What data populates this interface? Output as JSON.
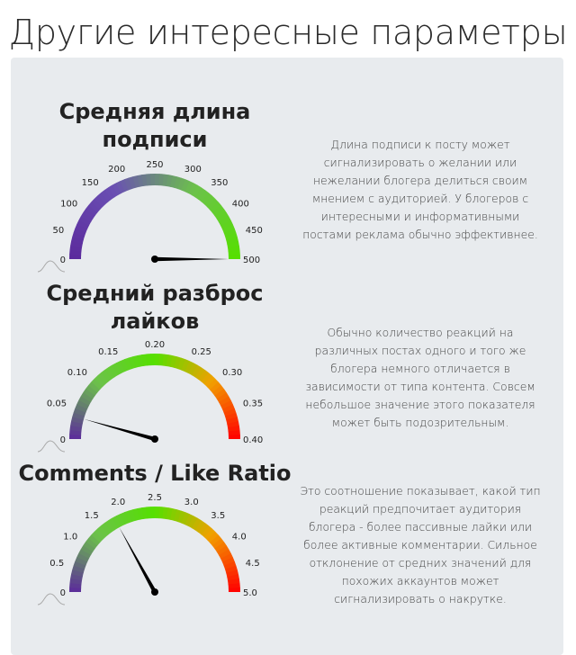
{
  "page": {
    "title": "Другие интересные параметры"
  },
  "gauges": [
    {
      "title_line1": "Средняя длина",
      "title_line2": "подписи",
      "description": "Длина подписи к посту может сигнализировать о желании или нежелании блогера делиться своим мнением с аудиторией. У блогеров с интересными и информативными постами реклама обычно эффективнее.",
      "tick_labels": [
        "0",
        "50",
        "100",
        "150",
        "200",
        "250",
        "300",
        "350",
        "400",
        "450",
        "500"
      ],
      "min": 0,
      "max": 500,
      "value": 500,
      "palette": "purple-green",
      "colors": [
        "#5b2a9c",
        "#6a4fb3",
        "#6cc24a",
        "#55e000"
      ]
    },
    {
      "title_line1": "Средний разброс",
      "title_line2": "лайков",
      "description": "Обычно количество реакций на различных постах одного и того же блогера немного отличается в зависимости от типа контента. Совсем небольшое значение этого показателя может быть подозрительным.",
      "tick_labels": [
        "0",
        "0.05",
        "0.10",
        "0.15",
        "0.20",
        "0.25",
        "0.30",
        "0.35",
        "0.40"
      ],
      "min": 0,
      "max": 0.4,
      "value": 0.035,
      "palette": "purple-green-red",
      "colors": [
        "#5b2a9c",
        "#6cc24a",
        "#55e000",
        "#f2a000",
        "#ff0000"
      ]
    },
    {
      "title_line1": "Comments / Like Ratio",
      "title_line2": "",
      "description": "Это соотношение показывает, какой тип реакций предпочитает аудитория блогера - более пассивные лайки или более активные комментарии. Сильное отклонение от средних значений для похожих аккаунтов может сигнализировать о накрутке.",
      "tick_labels": [
        "0",
        "0.5",
        "1.0",
        "1.5",
        "2.0",
        "2.5",
        "3.0",
        "3.5",
        "4.0",
        "4.5",
        "5.0"
      ],
      "min": 0,
      "max": 5,
      "value": 1.7,
      "palette": "purple-green-red",
      "colors": [
        "#5b2a9c",
        "#6cc24a",
        "#55e000",
        "#f2a000",
        "#ff0000"
      ]
    }
  ]
}
